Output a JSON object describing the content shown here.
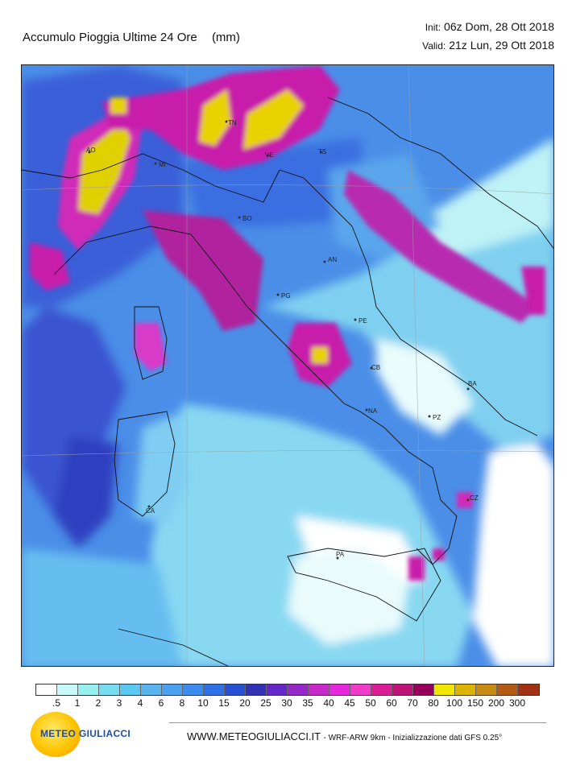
{
  "header": {
    "title": "Accumulo Pioggia Ultime 24 Ore",
    "unit": "(mm)",
    "init_label": "Init:",
    "init_value": "06z Dom, 28 Ott 2018",
    "valid_label": "Valid:",
    "valid_value": "21z Lun, 29 Ott 2018"
  },
  "map": {
    "cities": [
      {
        "name": "AO"
      },
      {
        "name": "MI"
      },
      {
        "name": "TN"
      },
      {
        "name": "VE"
      },
      {
        "name": "TS"
      },
      {
        "name": "BO"
      },
      {
        "name": "AN"
      },
      {
        "name": "PG"
      },
      {
        "name": "PE"
      },
      {
        "name": "CB"
      },
      {
        "name": "BA"
      },
      {
        "name": "NA"
      },
      {
        "name": "PZ"
      },
      {
        "name": "CZ"
      },
      {
        "name": "PA"
      },
      {
        "name": "CA"
      }
    ]
  },
  "legend": {
    "colors": [
      "#ffffff",
      "#c8fafa",
      "#96f0f0",
      "#78dcf0",
      "#5ac8f0",
      "#5ab4f0",
      "#4ba0f0",
      "#3c8cf0",
      "#3070e6",
      "#2850d2",
      "#3232b4",
      "#6428c8",
      "#9628c8",
      "#c828c8",
      "#e628dc",
      "#f03cc8",
      "#dc1e96",
      "#be1478",
      "#96005a",
      "#f0e600",
      "#dcb400",
      "#c88c14",
      "#b45a14",
      "#a03214"
    ],
    "labels": [
      ".5",
      "1",
      "2",
      "3",
      "4",
      "6",
      "8",
      "10",
      "15",
      "20",
      "25",
      "30",
      "35",
      "40",
      "45",
      "50",
      "60",
      "70",
      "80",
      "100",
      "150",
      "200",
      "300"
    ]
  },
  "branding": {
    "logo_part1": "METEO",
    "logo_part2": "GIULIACCI",
    "website": "WWW.METEOGIULIACCI.IT",
    "model_info": "- WRF-ARW 9km - Inizializzazione dati GFS 0.25°"
  }
}
